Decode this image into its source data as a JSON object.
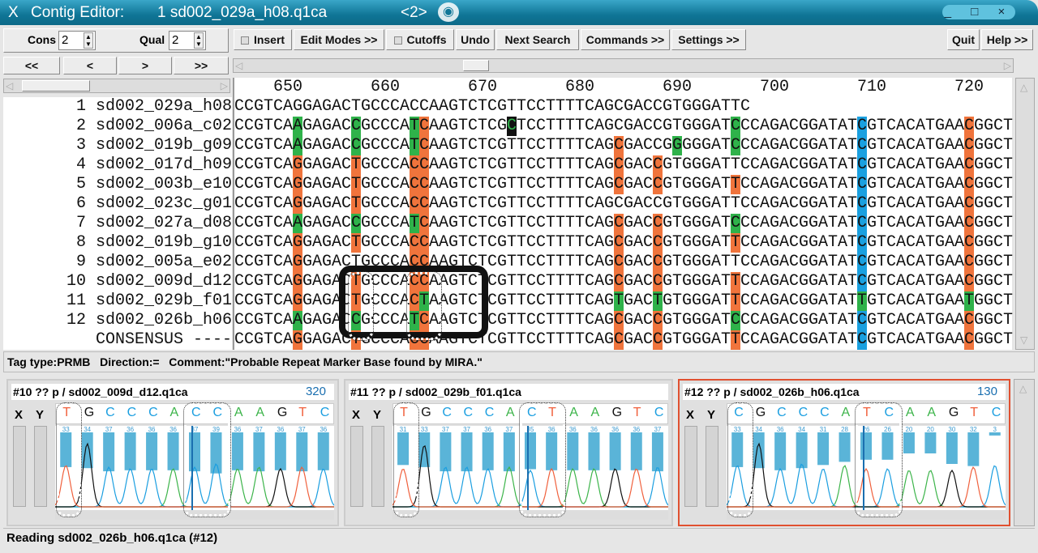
{
  "title": {
    "app": "Contig Editor:",
    "contig": "1 sd002_029a_h08.q1ca",
    "index": "<2>",
    "app_icon": "x-icon",
    "controls": "_ □ ×"
  },
  "toolbar": {
    "cons_label": "Cons",
    "cons_value": "2",
    "qual_label": "Qual",
    "qual_value": "2",
    "insert": "Insert",
    "edit_modes": "Edit Modes >>",
    "cutoffs": "Cutoffs",
    "undo": "Undo",
    "next_search": "Next Search",
    "commands": "Commands >>",
    "settings": "Settings >>",
    "quit": "Quit",
    "help": "Help >>"
  },
  "nav": {
    "first": "<<",
    "prev": "<",
    "next": ">",
    "last": ">>"
  },
  "ruler": [
    "650",
    "660",
    "670",
    "680",
    "690",
    "700",
    "710",
    "720"
  ],
  "colors": {
    "orange": "#f0743c",
    "green": "#2fb24a",
    "blue": "#1aa0e0",
    "selected": "#e05030"
  },
  "reads": [
    {
      "num": "1",
      "name": "sd002_029a_h08",
      "seq": "CCGTCAGGAGACTGCCCACCAAGTCTCGTTCCTTTTCAGCGACCGTGGGATTC",
      "hl": {}
    },
    {
      "num": "2",
      "name": "sd002_006a_c02",
      "seq": "CCGTCAAGAGACCGCCCATCAAGTCTCGCTCCTTTTCAGCGACCGTGGGATCCCAGACGGATATCGTCACATGAACGGCT",
      "hl": {
        "6": "g",
        "12": "g",
        "18": "g",
        "19": "o",
        "28": "k",
        "51": "g",
        "64": "b",
        "75": "o"
      }
    },
    {
      "num": "3",
      "name": "sd002_019b_g09",
      "seq": "CCGTCAAGAGACCGCCCATCAAGTCTCGTTCCTTTTCAGCGACCGGGGGATCCCAGACGGATATCGTCACATGAACGGCT",
      "hl": {
        "6": "g",
        "12": "g",
        "18": "g",
        "19": "o",
        "39": "o",
        "45": "g",
        "51": "g",
        "64": "b",
        "75": "o"
      }
    },
    {
      "num": "4",
      "name": "sd002_017d_h09",
      "seq": "CCGTCAGGAGACTGCCCACCAAGTCTCGTTCCTTTTCAGCGACCGTGGGATTCCAGACGGATATCGTCACATGAACGGCT",
      "hl": {
        "6": "o",
        "12": "o",
        "18": "o",
        "19": "o",
        "39": "o",
        "43": "o",
        "64": "b",
        "75": "o"
      }
    },
    {
      "num": "5",
      "name": "sd002_003b_e10",
      "seq": "CCGTCAGGAGACTGCCCACCAAGTCTCGTTCCTTTTCAGCGACCGTGGGATTCCAGACGGATATCGTCACATGAACGGCT",
      "hl": {
        "6": "o",
        "12": "o",
        "18": "o",
        "19": "o",
        "39": "o",
        "43": "o",
        "51": "o",
        "64": "b",
        "75": "o"
      }
    },
    {
      "num": "6",
      "name": "sd002_023c_g01",
      "seq": "CCGTCAGGAGACTGCCCACCAAGTCTCGTTCCTTTTCAGCGACCGTGGGATTCCAGACGGATATCGTCACATGAACGGCT",
      "hl": {
        "6": "o",
        "12": "o",
        "18": "o",
        "19": "o",
        "64": "b",
        "75": "o"
      }
    },
    {
      "num": "7",
      "name": "sd002_027a_d08",
      "seq": "CCGTCAAGAGACCGCCCATCAAGTCTCGTTCCTTTTCAGCGACCGTGGGATCCCAGACGGATATCGTCACATGAACGGCT",
      "hl": {
        "6": "g",
        "12": "g",
        "18": "g",
        "19": "o",
        "39": "o",
        "43": "o",
        "51": "g",
        "64": "b",
        "75": "o"
      }
    },
    {
      "num": "8",
      "name": "sd002_019b_g10",
      "seq": "CCGTCAGGAGACTGCCCACCAAGTCTCGTTCCTTTTCAGCGACCGTGGGATTCCAGACGGATATCGTCACATGAACGGCT",
      "hl": {
        "6": "o",
        "12": "o",
        "18": "o",
        "19": "o",
        "39": "o",
        "43": "o",
        "51": "o",
        "64": "b",
        "75": "o"
      }
    },
    {
      "num": "9",
      "name": "sd002_005a_e02",
      "seq": "CCGTCAGGAGACTGCCCACCAAGTCTCGTTCCTTTTCAGCGACCGTGGGATTCCAGACGGATATCGTCACATGAACGGCT",
      "hl": {
        "6": "o",
        "18": "o",
        "19": "o",
        "39": "o",
        "43": "o",
        "64": "b",
        "75": "o"
      }
    },
    {
      "num": "10",
      "name": "sd002_009d_d12",
      "seq": "CCGTCAGGAGACTGCCCACCAAGTCTCGTTCCTTTTCAGCGACCGTGGGATTCCAGACGGATATCGTCACATGAACGGCT",
      "hl": {
        "6": "o",
        "12": "o",
        "18": "o",
        "19": "o",
        "39": "o",
        "43": "o",
        "51": "o",
        "64": "b",
        "75": "o"
      }
    },
    {
      "num": "11",
      "name": "sd002_029b_f01",
      "seq": "CCGTCAGGAGACTGCCCACTAAGTCTCGTTCCTTTTCAGTGACTGTGGGATTCCAGACGGATATTGTCACATGAATGGCT",
      "hl": {
        "6": "o",
        "12": "o",
        "18": "o",
        "19": "g",
        "39": "g",
        "43": "g",
        "51": "o",
        "64": "g",
        "75": "g"
      }
    },
    {
      "num": "12",
      "name": "sd002_026b_h06",
      "seq": "CCGTCAAGAGACCGCCCATCAAGTCTCGTTCCTTTTCAGCGACCGTGGGATCCCAGACGGATATCGTCACATGAACGGCT",
      "hl": {
        "6": "g",
        "12": "g",
        "18": "g",
        "19": "o",
        "39": "o",
        "43": "o",
        "51": "g",
        "64": "b",
        "75": "o"
      }
    },
    {
      "num": "",
      "name": "CONSENSUS ----",
      "seq": "CCGTCAGGAGACTGCCCACCAAGTCTCGTTCCTTTTCAGCGACCGTGGGATTCCAGACGGATATCGTCACATGAACGGCT",
      "hl": {
        "6": "o",
        "12": "o",
        "18": "o",
        "19": "o",
        "39": "o",
        "43": "o",
        "51": "o",
        "64": "b",
        "75": "o"
      }
    }
  ],
  "tag": "Tag type:PRMB   Direction:=   Comment:\"Probable Repeat Marker Base found by MIRA.\"",
  "traces": [
    {
      "title": "#10 ?? p / sd002_009d_d12.q1ca",
      "pos": "320",
      "bases": "TGCCCACCAAGTC",
      "quals": [
        "33",
        "34",
        "37",
        "36",
        "36",
        "36",
        "37",
        "39",
        "36",
        "37",
        "36",
        "37",
        "36"
      ],
      "selected": false
    },
    {
      "title": "#11 ?? p / sd002_029b_f01.q1ca",
      "pos": "",
      "bases": "TGCCCACTAAGTC",
      "quals": [
        "31",
        "33",
        "37",
        "37",
        "36",
        "37",
        "35",
        "36",
        "36",
        "36",
        "36",
        "36",
        "37"
      ],
      "selected": false
    },
    {
      "title": "#12 ?? p / sd002_026b_h06.q1ca",
      "pos": "130",
      "bases": "CGCCCATCAAGTC",
      "quals": [
        "33",
        "34",
        "36",
        "34",
        "31",
        "28",
        "26",
        "26",
        "20",
        "20",
        "30",
        "32",
        "3"
      ],
      "selected": true
    }
  ],
  "trace_labels": {
    "x": "X",
    "y": "Y"
  },
  "base_colors": {
    "A": "#3cb44a",
    "C": "#1a9ee0",
    "G": "#111111",
    "T": "#f0603c"
  },
  "status": "Reading sd002_026b_h06.q1ca (#12)"
}
